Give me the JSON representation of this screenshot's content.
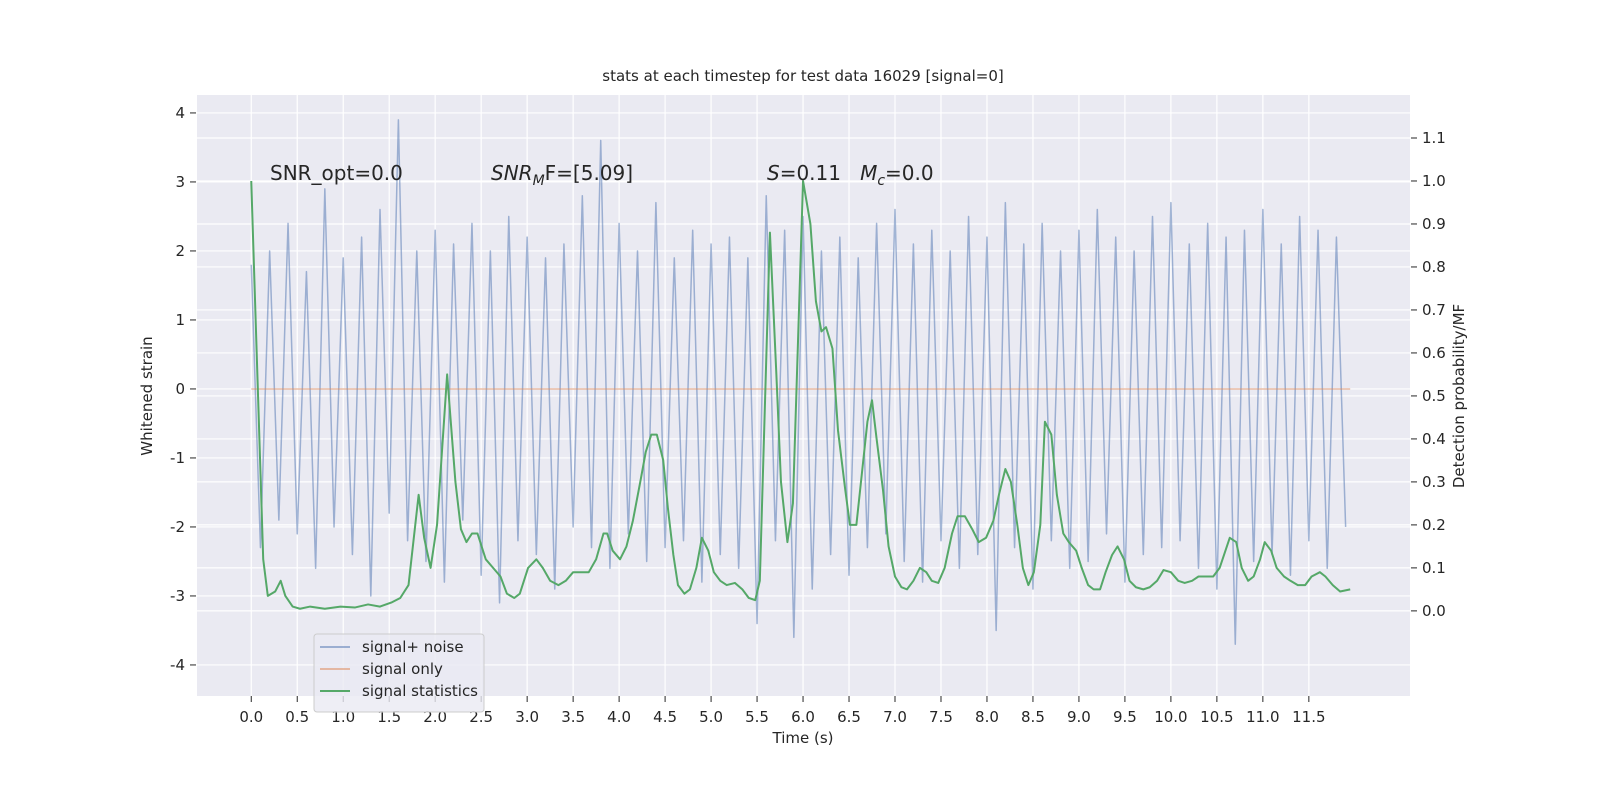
{
  "chart_data": {
    "type": "line",
    "title": "stats at each timestep for test data 16029 [signal=0]",
    "xlabel": "Time (s)",
    "ylabel": "Whitened strain",
    "y2label": "Detection probability/MF",
    "xlim": [
      -0.59,
      12.6
    ],
    "ylim": [
      -4.45,
      4.26
    ],
    "y2lim": [
      -0.198,
      1.2
    ],
    "grid": true,
    "legend": "lower left",
    "xticks": [
      {
        "value": 0,
        "label": "0.0"
      },
      {
        "value": 0.5,
        "label": "0.5"
      },
      {
        "value": 1,
        "label": "1.0"
      },
      {
        "value": 1.5,
        "label": "1.5"
      },
      {
        "value": 2,
        "label": "2.0"
      },
      {
        "value": 2.5,
        "label": "2.5"
      },
      {
        "value": 3,
        "label": "3.0"
      },
      {
        "value": 3.5,
        "label": "3.5"
      },
      {
        "value": 4,
        "label": "4.0"
      },
      {
        "value": 4.5,
        "label": "4.5"
      },
      {
        "value": 5,
        "label": "5.0"
      },
      {
        "value": 5.5,
        "label": "5.5"
      },
      {
        "value": 6,
        "label": "6.0"
      },
      {
        "value": 6.5,
        "label": "6.5"
      },
      {
        "value": 7,
        "label": "7.0"
      },
      {
        "value": 7.5,
        "label": "7.5"
      },
      {
        "value": 8,
        "label": "8.0"
      },
      {
        "value": 8.5,
        "label": "8.5"
      },
      {
        "value": 9,
        "label": "9.0"
      },
      {
        "value": 9.5,
        "label": "9.5"
      },
      {
        "value": 10,
        "label": "10.0"
      },
      {
        "value": 10.5,
        "label": "10.5"
      },
      {
        "value": 11,
        "label": "11.0"
      },
      {
        "value": 11.5,
        "label": "11.5"
      }
    ],
    "yticks": [
      -4,
      -3,
      -2,
      -1,
      0,
      1,
      2,
      3,
      4
    ],
    "y2ticks": [
      {
        "value": 0,
        "label": "0.0"
      },
      {
        "value": 0.1,
        "label": "0.1"
      },
      {
        "value": 0.2,
        "label": "0.2"
      },
      {
        "value": 0.3,
        "label": "0.3"
      },
      {
        "value": 0.4,
        "label": "0.4"
      },
      {
        "value": 0.5,
        "label": "0.5"
      },
      {
        "value": 0.6,
        "label": "0.6"
      },
      {
        "value": 0.7,
        "label": "0.7"
      },
      {
        "value": 0.8,
        "label": "0.8"
      },
      {
        "value": 0.9,
        "label": "0.9"
      },
      {
        "value": 1,
        "label": "1.0"
      },
      {
        "value": 1.1,
        "label": "1.1"
      }
    ],
    "annotations": [
      {
        "parts": [
          {
            "text": "SNR_opt=0.0"
          }
        ]
      },
      {
        "parts": [
          {
            "text": "SNR",
            "italic": true
          },
          {
            "text": "M",
            "italic": true,
            "sub": true
          },
          {
            "text": "F=[5.09]"
          }
        ]
      },
      {
        "parts": [
          {
            "text": "S",
            "italic": true
          },
          {
            "text": "=0.11   "
          },
          {
            "text": "M",
            "italic": true
          },
          {
            "text": "c",
            "italic": true,
            "sub": true
          },
          {
            "text": "=0.0"
          }
        ]
      }
    ],
    "series": [
      {
        "name": "signal+ noise",
        "color": "#4c72b0",
        "alpha": 0.5,
        "x": [
          0,
          0.1,
          0.2,
          0.3,
          0.4,
          0.5,
          0.6,
          0.7,
          0.8,
          0.9,
          1,
          1.1,
          1.2,
          1.3,
          1.4,
          1.5,
          1.6,
          1.7,
          1.8,
          1.9,
          2,
          2.1,
          2.2,
          2.3,
          2.4,
          2.5,
          2.6,
          2.7,
          2.8,
          2.9,
          3,
          3.1,
          3.2,
          3.3,
          3.4,
          3.5,
          3.6,
          3.7,
          3.8,
          3.9,
          4,
          4.1,
          4.2,
          4.3,
          4.4,
          4.5,
          4.6,
          4.7,
          4.8,
          4.9,
          5,
          5.1,
          5.2,
          5.3,
          5.4,
          5.5,
          5.6,
          5.7,
          5.8,
          5.9,
          6,
          6.1,
          6.2,
          6.3,
          6.4,
          6.5,
          6.6,
          6.7,
          6.8,
          6.9,
          7,
          7.1,
          7.2,
          7.3,
          7.4,
          7.5,
          7.6,
          7.7,
          7.8,
          7.9,
          8,
          8.1,
          8.2,
          8.3,
          8.4,
          8.5,
          8.6,
          8.7,
          8.8,
          8.9,
          9,
          9.1,
          9.2,
          9.3,
          9.4,
          9.5,
          9.6,
          9.7,
          9.8,
          9.9,
          10,
          10.1,
          10.2,
          10.3,
          10.4,
          10.5,
          10.6,
          10.7,
          10.8,
          10.9,
          11,
          11.1,
          11.2,
          11.3,
          11.4,
          11.5,
          11.6,
          11.7,
          11.8,
          11.9
        ],
        "values": [
          1.8,
          -2.3,
          2.0,
          -1.9,
          2.4,
          -2.1,
          1.7,
          -2.6,
          2.9,
          -2.0,
          1.9,
          -2.4,
          2.2,
          -3.0,
          2.6,
          -1.8,
          3.9,
          -2.2,
          2.0,
          -2.5,
          2.3,
          -2.8,
          2.1,
          -1.9,
          2.4,
          -2.7,
          2.0,
          -3.1,
          2.5,
          -2.2,
          2.2,
          -2.4,
          1.9,
          -2.9,
          2.1,
          -2.0,
          2.8,
          -2.3,
          3.6,
          -2.6,
          2.4,
          -2.1,
          2.0,
          -2.5,
          2.7,
          -2.3,
          1.9,
          -2.2,
          2.3,
          -2.8,
          2.1,
          -2.4,
          2.2,
          -2.6,
          1.9,
          -3.4,
          2.8,
          -2.2,
          2.3,
          -3.6,
          2.5,
          -2.9,
          2.0,
          -2.4,
          2.2,
          -2.7,
          1.9,
          -2.3,
          2.4,
          -2.1,
          2.6,
          -2.5,
          2.1,
          -2.8,
          2.3,
          -2.2,
          2.0,
          -2.6,
          2.5,
          -2.4,
          2.2,
          -3.5,
          2.7,
          -2.3,
          2.1,
          -2.9,
          2.4,
          -2.2,
          2.0,
          -2.6,
          2.3,
          -2.5,
          2.6,
          -2.1,
          2.2,
          -2.8,
          2.0,
          -2.4,
          2.5,
          -2.3,
          2.7,
          -2.2,
          2.1,
          -2.6,
          2.4,
          -2.9,
          2.2,
          -3.7,
          2.3,
          -2.5,
          2.6,
          -2.4,
          2.1,
          -2.7,
          2.5,
          -2.2,
          2.3,
          -2.6,
          2.2,
          -2.0
        ]
      },
      {
        "name": "signal only",
        "color": "#dd8452",
        "alpha": 0.5,
        "x": [
          0,
          11.95
        ],
        "values": [
          0,
          0
        ]
      },
      {
        "name": "signal statistics",
        "color": "#55a868",
        "axis": "y2",
        "x": [
          0,
          0.13,
          0.18,
          0.26,
          0.32,
          0.37,
          0.45,
          0.53,
          0.64,
          0.8,
          0.97,
          1.13,
          1.27,
          1.4,
          1.53,
          1.62,
          1.71,
          1.82,
          1.88,
          1.95,
          2.02,
          2.13,
          2.22,
          2.28,
          2.34,
          2.4,
          2.46,
          2.55,
          2.63,
          2.71,
          2.78,
          2.86,
          2.92,
          3.01,
          3.1,
          3.17,
          3.25,
          3.34,
          3.42,
          3.5,
          3.59,
          3.67,
          3.75,
          3.83,
          3.87,
          3.93,
          4.01,
          4.08,
          4.15,
          4.23,
          4.29,
          4.35,
          4.41,
          4.48,
          4.53,
          4.59,
          4.64,
          4.71,
          4.77,
          4.84,
          4.9,
          4.97,
          5.03,
          5.1,
          5.17,
          5.26,
          5.34,
          5.41,
          5.48,
          5.53,
          5.64,
          5.71,
          5.76,
          5.83,
          5.89,
          6.0,
          6.08,
          6.14,
          6.2,
          6.25,
          6.32,
          6.38,
          6.46,
          6.51,
          6.58,
          6.64,
          6.7,
          6.75,
          6.8,
          6.87,
          6.93,
          7.0,
          7.07,
          7.13,
          7.2,
          7.27,
          7.34,
          7.4,
          7.47,
          7.54,
          7.62,
          7.68,
          7.76,
          7.84,
          7.91,
          7.99,
          8.07,
          8.13,
          8.2,
          8.26,
          8.33,
          8.39,
          8.45,
          8.51,
          8.58,
          8.63,
          8.7,
          8.76,
          8.83,
          8.89,
          8.97,
          9.03,
          9.1,
          9.16,
          9.23,
          9.29,
          9.36,
          9.42,
          9.49,
          9.55,
          9.62,
          9.7,
          9.77,
          9.85,
          9.92,
          10.0,
          10.08,
          10.15,
          10.23,
          10.3,
          10.38,
          10.46,
          10.53,
          10.64,
          10.71,
          10.77,
          10.84,
          10.9,
          10.97,
          11.02,
          11.09,
          11.15,
          11.23,
          11.3,
          11.38,
          11.46,
          11.53,
          11.62,
          11.68,
          11.76,
          11.84,
          11.95
        ],
        "values": [
          1.0,
          0.12,
          0.035,
          0.045,
          0.07,
          0.035,
          0.01,
          0.005,
          0.01,
          0.005,
          0.01,
          0.008,
          0.015,
          0.01,
          0.02,
          0.03,
          0.06,
          0.27,
          0.17,
          0.1,
          0.2,
          0.55,
          0.3,
          0.19,
          0.16,
          0.18,
          0.18,
          0.12,
          0.1,
          0.08,
          0.04,
          0.03,
          0.04,
          0.1,
          0.12,
          0.1,
          0.07,
          0.06,
          0.07,
          0.09,
          0.09,
          0.09,
          0.12,
          0.18,
          0.18,
          0.14,
          0.12,
          0.15,
          0.21,
          0.3,
          0.37,
          0.41,
          0.41,
          0.35,
          0.24,
          0.13,
          0.06,
          0.04,
          0.05,
          0.1,
          0.17,
          0.14,
          0.09,
          0.07,
          0.06,
          0.065,
          0.05,
          0.03,
          0.025,
          0.07,
          0.88,
          0.55,
          0.3,
          0.16,
          0.25,
          1.0,
          0.9,
          0.72,
          0.65,
          0.66,
          0.61,
          0.42,
          0.28,
          0.2,
          0.2,
          0.32,
          0.44,
          0.49,
          0.4,
          0.28,
          0.15,
          0.08,
          0.055,
          0.05,
          0.07,
          0.1,
          0.09,
          0.07,
          0.065,
          0.1,
          0.18,
          0.22,
          0.22,
          0.19,
          0.16,
          0.17,
          0.21,
          0.27,
          0.33,
          0.3,
          0.2,
          0.1,
          0.06,
          0.09,
          0.2,
          0.44,
          0.41,
          0.27,
          0.18,
          0.16,
          0.14,
          0.1,
          0.06,
          0.05,
          0.05,
          0.09,
          0.13,
          0.15,
          0.12,
          0.07,
          0.055,
          0.05,
          0.055,
          0.07,
          0.095,
          0.09,
          0.07,
          0.065,
          0.07,
          0.08,
          0.08,
          0.08,
          0.1,
          0.17,
          0.16,
          0.1,
          0.07,
          0.08,
          0.12,
          0.16,
          0.14,
          0.1,
          0.08,
          0.07,
          0.06,
          0.06,
          0.08,
          0.09,
          0.08,
          0.06,
          0.045,
          0.05
        ]
      }
    ]
  }
}
